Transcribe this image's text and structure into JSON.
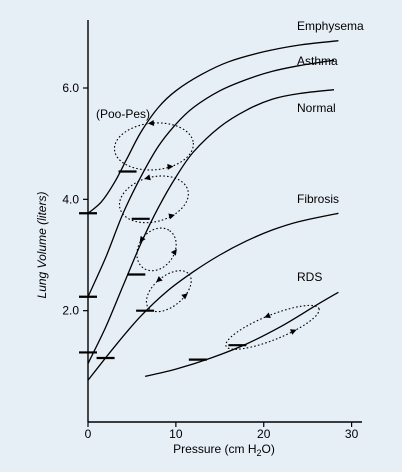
{
  "chart_data": {
    "type": "line",
    "title": "",
    "xlabel_main": "Pressure (cm H",
    "xlabel_sub": "2",
    "xlabel_tail": "O)",
    "ylabel": "Lung Volume (liters)",
    "xlim": [
      0,
      31
    ],
    "ylim": [
      0,
      7.2
    ],
    "x_ticks": [
      0,
      10,
      20,
      30
    ],
    "x_tick_labels": [
      "0",
      "10",
      "20",
      "30"
    ],
    "y_ticks": [
      2.0,
      4.0,
      6.0
    ],
    "y_tick_labels": [
      "2.0",
      "4.0",
      "6.0"
    ],
    "annotation": "(Poo-Pes)",
    "series": [
      {
        "name": "Emphysema",
        "x": [
          0,
          1.5,
          3,
          4.5,
          6,
          8,
          10,
          13,
          16,
          20,
          24,
          28.5
        ],
        "y": [
          3.75,
          3.95,
          4.3,
          4.75,
          5.2,
          5.65,
          5.95,
          6.25,
          6.47,
          6.65,
          6.77,
          6.85
        ]
      },
      {
        "name": "Asthma",
        "x": [
          0,
          2,
          4,
          6,
          8,
          10,
          12,
          15,
          18,
          21,
          24,
          28
        ],
        "y": [
          2.25,
          2.95,
          3.75,
          4.4,
          4.95,
          5.35,
          5.65,
          5.95,
          6.15,
          6.3,
          6.4,
          6.5
        ]
      },
      {
        "name": "Normal",
        "x": [
          0,
          2,
          4,
          6,
          8,
          10,
          12,
          15,
          18,
          21,
          24,
          28
        ],
        "y": [
          1.05,
          1.7,
          2.45,
          3.2,
          3.85,
          4.4,
          4.85,
          5.3,
          5.6,
          5.8,
          5.9,
          5.97
        ]
      },
      {
        "name": "Fibrosis",
        "x": [
          0,
          3,
          6,
          9,
          12,
          15,
          18,
          21,
          24,
          28.5
        ],
        "y": [
          0.75,
          1.35,
          1.9,
          2.35,
          2.7,
          3.0,
          3.25,
          3.45,
          3.6,
          3.75
        ]
      },
      {
        "name": "RDS",
        "x": [
          6.5,
          10,
          14,
          18,
          22,
          26,
          28.5
        ],
        "y": [
          0.82,
          0.95,
          1.15,
          1.4,
          1.72,
          2.1,
          2.33
        ]
      }
    ],
    "resting_markers": [
      {
        "series": "Emphysema",
        "x": 0,
        "y": 3.75
      },
      {
        "series": "Emphysema",
        "x": 4.5,
        "y": 4.5
      },
      {
        "series": "Asthma",
        "x": 0,
        "y": 2.25
      },
      {
        "series": "Asthma",
        "x": 6,
        "y": 3.65
      },
      {
        "series": "Normal",
        "x": 0,
        "y": 1.25
      },
      {
        "series": "Normal",
        "x": 5.5,
        "y": 2.65
      },
      {
        "series": "Fibrosis",
        "x": 2,
        "y": 1.15
      },
      {
        "series": "Fibrosis",
        "x": 6.5,
        "y": 2.0
      },
      {
        "series": "RDS",
        "x": 12.5,
        "y": 1.12
      },
      {
        "series": "RDS",
        "x": 17,
        "y": 1.38
      }
    ],
    "dynamic_loops": [
      {
        "series": "Emphysema",
        "cx": 7.5,
        "cy": 4.95,
        "rx": 4.5,
        "ry": 0.42,
        "angle": -5
      },
      {
        "series": "Asthma",
        "cx": 7.5,
        "cy": 4.0,
        "rx": 4.0,
        "ry": 0.4,
        "angle": -15
      },
      {
        "series": "Normal",
        "cx": 7.8,
        "cy": 3.1,
        "rx": 2.6,
        "ry": 0.32,
        "angle": -55
      },
      {
        "series": "Fibrosis",
        "cx": 9.2,
        "cy": 2.35,
        "rx": 3.0,
        "ry": 0.27,
        "angle": -40
      },
      {
        "series": "RDS",
        "cx": 21.0,
        "cy": 1.7,
        "rx": 5.7,
        "ry": 0.22,
        "angle": -22
      }
    ]
  }
}
